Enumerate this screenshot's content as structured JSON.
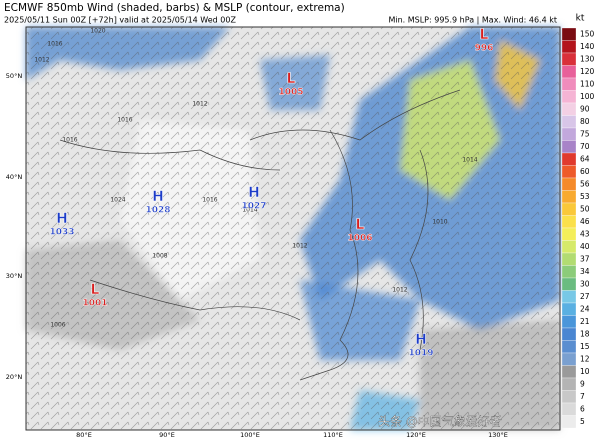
{
  "header": {
    "title": "ECMWF 850mb Wind (shaded, barbs) & MSLP (contour, extrema)",
    "subtitle": "2025/05/11 Sun 00Z [+72h] valid at 2025/05/14 Wed 00Z",
    "stats": "Min. MSLP: 995.9 hPa | Max. Wind: 46.4 kt"
  },
  "colorbar": {
    "unit": "kt",
    "ticks": [
      150,
      140,
      130,
      120,
      110,
      100,
      90,
      80,
      75,
      70,
      64,
      60,
      56,
      53,
      50,
      46,
      43,
      40,
      37,
      34,
      30,
      27,
      24,
      21,
      18,
      15,
      12,
      10,
      9,
      7,
      6,
      5
    ],
    "colors": [
      "#7a0c12",
      "#b3141c",
      "#d9303a",
      "#e8609a",
      "#f08cbc",
      "#f5b4d4",
      "#f3d0e4",
      "#d8c6e8",
      "#c2a8dc",
      "#a884c8",
      "#e03a2e",
      "#ee5a2a",
      "#f58a2a",
      "#f8aa30",
      "#fac83a",
      "#fbe04a",
      "#f4ee5a",
      "#d6ea6a",
      "#b2dc72",
      "#8ccc7a",
      "#6abc80",
      "#78c8e6",
      "#5ab0e2",
      "#4a96da",
      "#4a86d2",
      "#5a8ed0",
      "#7aa0d0",
      "#9a9a9a",
      "#b4b4b4",
      "#c8c8c8",
      "#dadada",
      "#ececec"
    ]
  },
  "pressure_centers": [
    {
      "type": "L",
      "value": 996
    },
    {
      "type": "L",
      "value": 1005
    },
    {
      "type": "H",
      "value": 1027
    },
    {
      "type": "H",
      "value": 1028
    },
    {
      "type": "H",
      "value": 1033
    },
    {
      "type": "L",
      "value": 1006
    },
    {
      "type": "L",
      "value": 1001
    },
    {
      "type": "H",
      "value": 1019
    }
  ],
  "lat_labels": [
    "50°N",
    "40°N",
    "30°N",
    "20°N"
  ],
  "lon_labels": [
    "80°E",
    "90°E",
    "100°E",
    "110°E",
    "120°E",
    "130°E"
  ],
  "contour_labels": [
    "1020",
    "1016",
    "1012",
    "1012",
    "1016",
    "1016",
    "1024",
    "1016",
    "1014",
    "1008",
    "1012",
    "1010",
    "1012",
    "1014",
    "1006"
  ],
  "watermark": "头条 @中国气象爱好者"
}
